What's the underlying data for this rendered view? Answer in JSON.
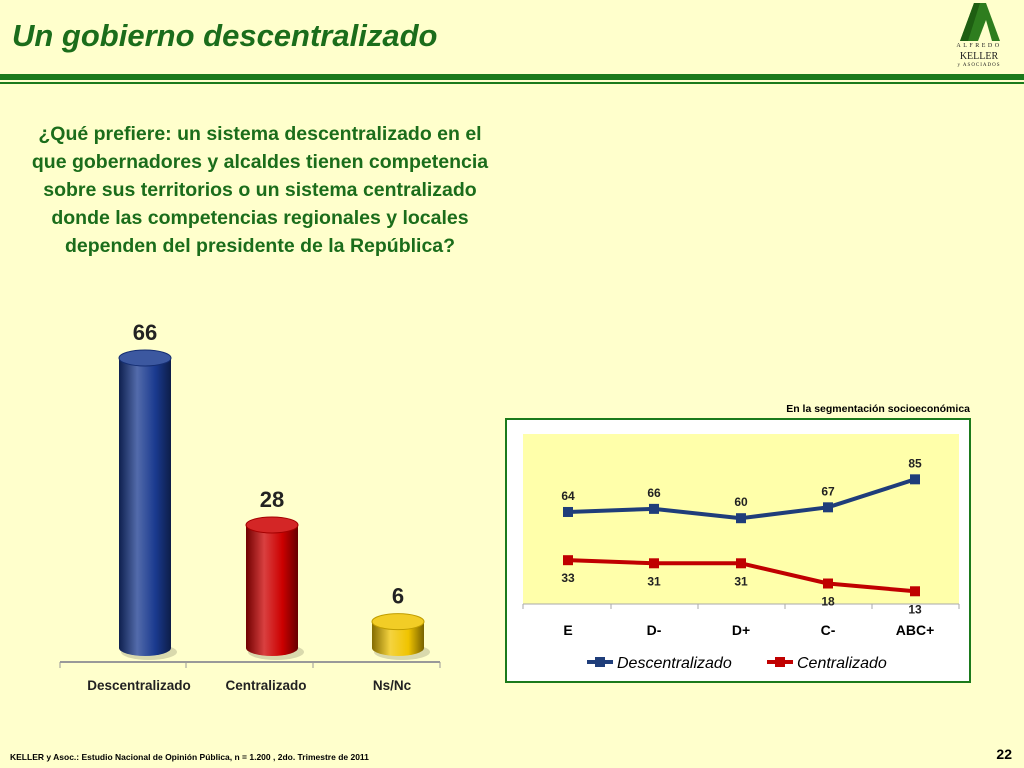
{
  "title": "Un gobierno descentralizado",
  "logo": {
    "line1": "ALFREDO",
    "line2": "KELLER",
    "line3": "y ASOCIADOS",
    "color": "#2e7d1e"
  },
  "question": "¿Qué prefiere: un sistema descentralizado en el que gobernadores y alcaldes tienen competencia sobre sus territorios o un sistema centralizado donde las competencias regionales y locales dependen del presidente de la República?",
  "segment_label": "En la segmentación socioeconómica",
  "footer": {
    "source": "KELLER y Asoc.: Estudio Nacional de Opinión Pública, n = 1.200 , 2do. Trimestre de 2011",
    "page": "22"
  },
  "chart_data": [
    {
      "type": "bar",
      "categories": [
        "Descentralizado",
        "Centralizado",
        "Ns/Nc"
      ],
      "values": [
        66,
        28,
        6
      ],
      "colors": [
        "#1a3a8f",
        "#cc0000",
        "#f0c400"
      ]
    },
    {
      "type": "line",
      "categories": [
        "E",
        "D-",
        "D+",
        "C-",
        "ABC+"
      ],
      "series": [
        {
          "name": "Descentralizado",
          "values": [
            64,
            66,
            60,
            67,
            85
          ],
          "color": "#1f3d7a"
        },
        {
          "name": "Centralizado",
          "values": [
            33,
            31,
            31,
            18,
            13
          ],
          "color": "#c00000"
        }
      ],
      "legend_position": "bottom",
      "plot_background": "#ffffaa"
    }
  ]
}
